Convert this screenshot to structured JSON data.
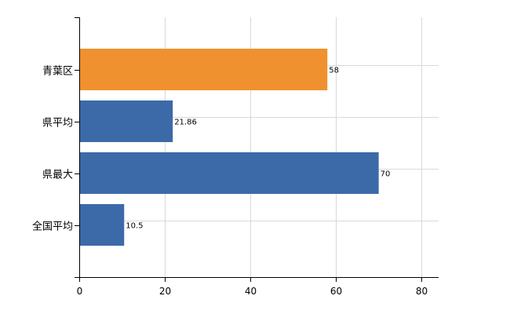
{
  "chart_data": {
    "type": "bar",
    "orientation": "horizontal",
    "categories": [
      "青葉区",
      "県平均",
      "県最大",
      "全国平均"
    ],
    "values": [
      58,
      21.86,
      70,
      10.5
    ],
    "data_labels": [
      "58",
      "21.86",
      "70",
      "10.5"
    ],
    "bar_colors": [
      "#f0912f",
      "#3c6aa8",
      "#3c6aa8",
      "#3c6aa8"
    ],
    "xlim": [
      0,
      84
    ],
    "x_ticks": [
      0,
      20,
      40,
      60,
      80
    ],
    "x_tick_labels": [
      "0",
      "20",
      "40",
      "60",
      "80"
    ],
    "grid": true,
    "legend": "none",
    "title": "",
    "xlabel": "",
    "ylabel": ""
  }
}
